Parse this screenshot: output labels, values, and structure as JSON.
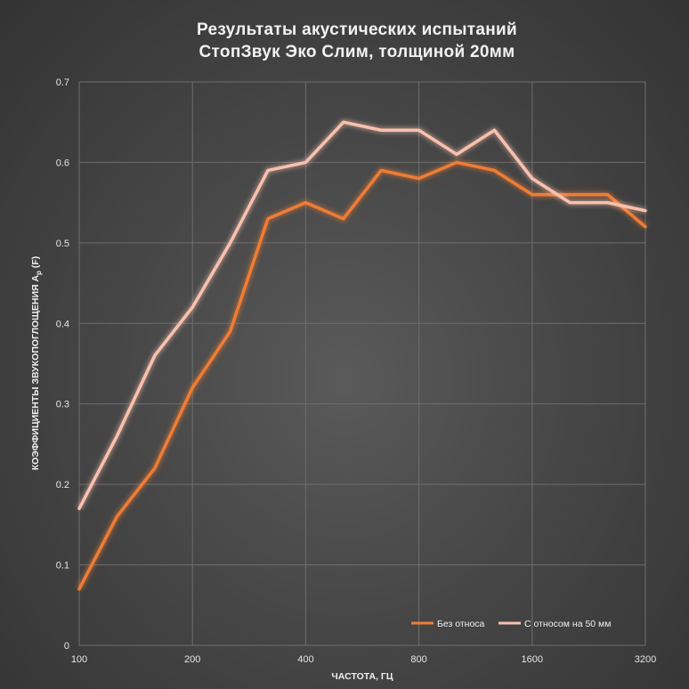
{
  "chart_data": {
    "type": "line",
    "title": [
      "Результаты акустических испытаний",
      "СтопЗвук Эко Слим, толщиной 20мм"
    ],
    "xlabel": "ЧАСТОТА, ГЦ",
    "ylabel": "КОЭФФИЦИЕНТЫ ЗВУКОПОГЛОЩЕНИЯ A",
    "ylabel_sub": "p",
    "ylabel_suffix": " (F)",
    "x": [
      100,
      125,
      160,
      200,
      250,
      315,
      400,
      500,
      630,
      800,
      1000,
      1250,
      1600,
      2000,
      2500,
      3200
    ],
    "x_tick_labels": [
      "100",
      "200",
      "400",
      "800",
      "1600",
      "3200"
    ],
    "y_tick_labels": [
      "0",
      "0.1",
      "0.2",
      "0.3",
      "0.4",
      "0.5",
      "0.6",
      "0.7"
    ],
    "ylim": [
      0,
      0.7
    ],
    "grid": true,
    "legend_position": "bottom-right",
    "series": [
      {
        "name": "Без относа",
        "color": "#ee7d35",
        "values": [
          0.07,
          0.16,
          0.22,
          0.32,
          0.39,
          0.53,
          0.55,
          0.53,
          0.59,
          0.58,
          0.6,
          0.59,
          0.56,
          0.56,
          0.56,
          0.52
        ]
      },
      {
        "name": "С относом на 50 мм",
        "color": "#f8c1ae",
        "values": [
          0.17,
          0.26,
          0.36,
          0.42,
          0.5,
          0.59,
          0.6,
          0.65,
          0.64,
          0.64,
          0.61,
          0.64,
          0.58,
          0.55,
          0.55,
          0.54
        ]
      }
    ]
  }
}
